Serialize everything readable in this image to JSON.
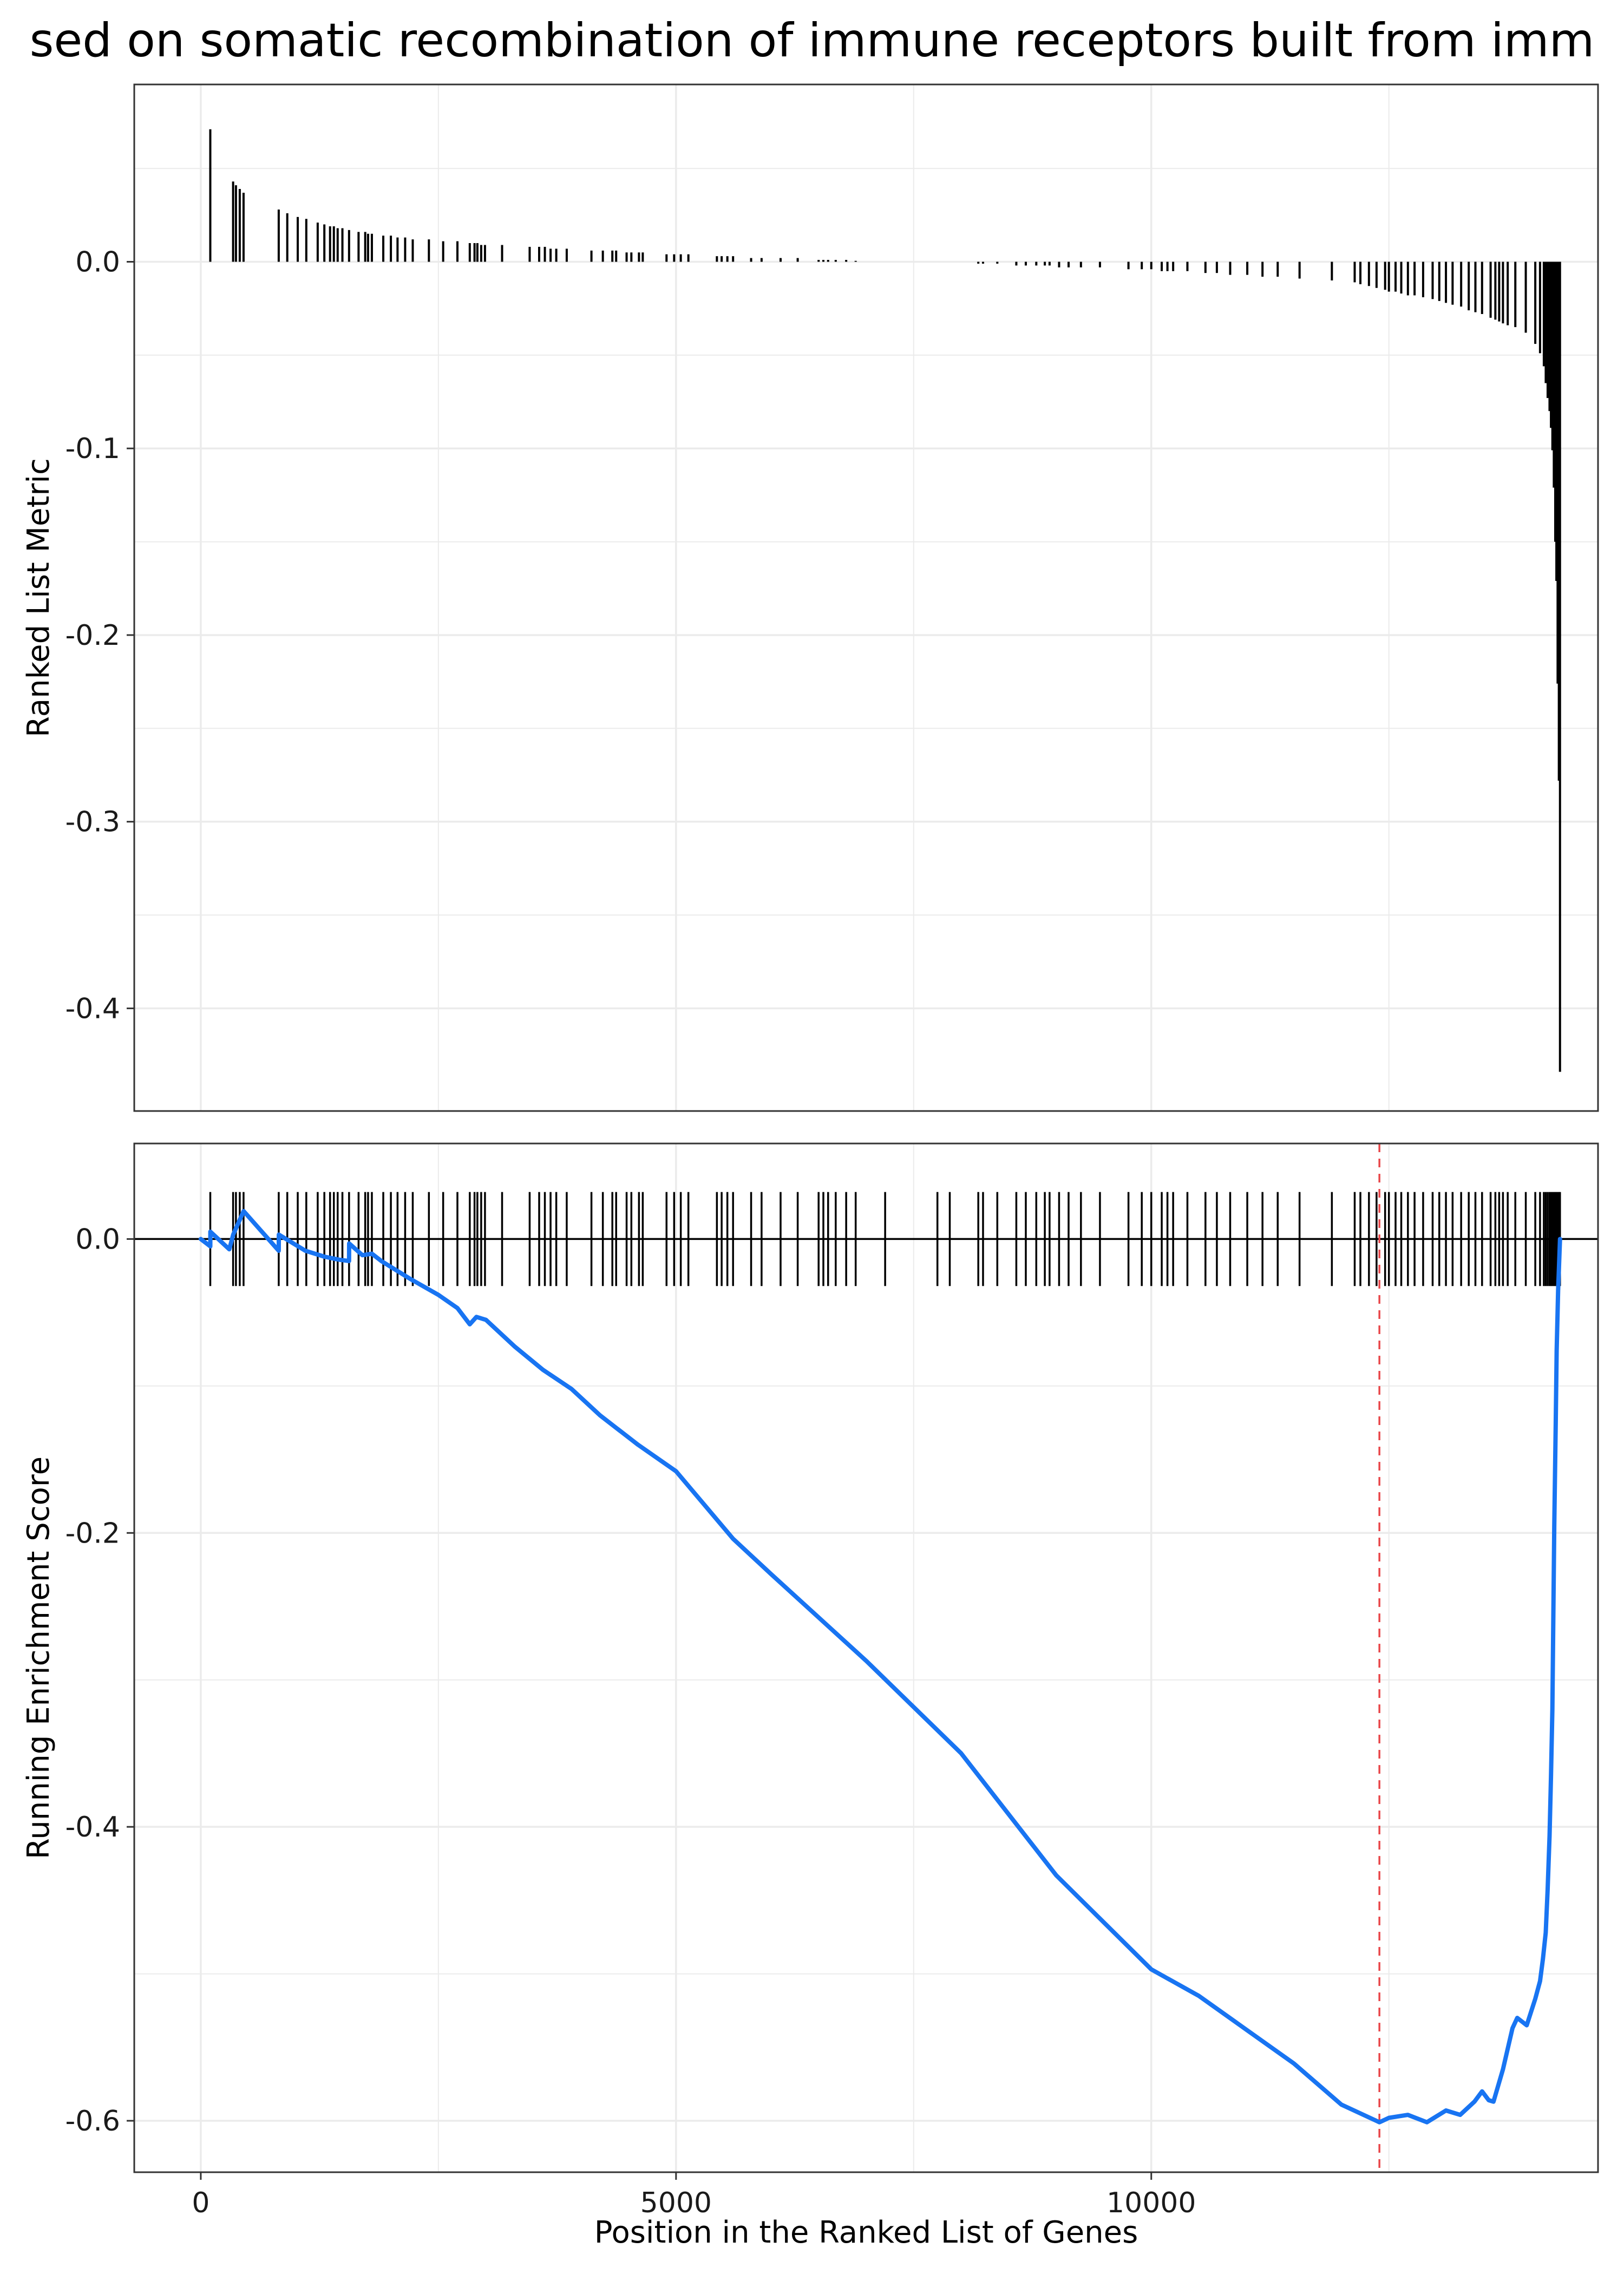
{
  "title": "sed on somatic recombination of immune receptors built from imm",
  "colors": {
    "curve": "#1874F2",
    "hits": "#000000",
    "min_line": "#E8474A",
    "grid": "#EBEBEB"
  },
  "chart_data": [
    {
      "type": "bar",
      "panel": "top",
      "ylabel": "Ranked List Metric",
      "xlim": [
        -700,
        14700
      ],
      "ylim": [
        -0.455,
        0.095
      ],
      "yticks": [
        {
          "v": 0.0,
          "label": "0.0"
        },
        {
          "v": -0.1,
          "label": "-0.1"
        },
        {
          "v": -0.2,
          "label": "-0.2"
        },
        {
          "v": -0.3,
          "label": "-0.3"
        },
        {
          "v": -0.4,
          "label": "-0.4"
        }
      ],
      "grid": true,
      "points": [
        [
          100,
          0.071
        ],
        [
          340,
          0.043
        ],
        [
          370,
          0.041
        ],
        [
          410,
          0.039
        ],
        [
          450,
          0.037
        ],
        [
          820,
          0.028
        ],
        [
          910,
          0.026
        ],
        [
          1020,
          0.024
        ],
        [
          1110,
          0.023
        ],
        [
          1230,
          0.021
        ],
        [
          1300,
          0.02
        ],
        [
          1360,
          0.019
        ],
        [
          1400,
          0.019
        ],
        [
          1440,
          0.018
        ],
        [
          1490,
          0.018
        ],
        [
          1560,
          0.017
        ],
        [
          1660,
          0.016
        ],
        [
          1730,
          0.016
        ],
        [
          1760,
          0.015
        ],
        [
          1800,
          0.015
        ],
        [
          1920,
          0.014
        ],
        [
          2000,
          0.014
        ],
        [
          2070,
          0.013
        ],
        [
          2150,
          0.013
        ],
        [
          2230,
          0.012
        ],
        [
          2400,
          0.012
        ],
        [
          2550,
          0.011
        ],
        [
          2700,
          0.011
        ],
        [
          2830,
          0.01
        ],
        [
          2880,
          0.01
        ],
        [
          2910,
          0.01
        ],
        [
          2950,
          0.009
        ],
        [
          2990,
          0.009
        ],
        [
          3170,
          0.009
        ],
        [
          3460,
          0.008
        ],
        [
          3560,
          0.008
        ],
        [
          3620,
          0.008
        ],
        [
          3680,
          0.007
        ],
        [
          3740,
          0.007
        ],
        [
          3850,
          0.007
        ],
        [
          4110,
          0.006
        ],
        [
          4230,
          0.006
        ],
        [
          4330,
          0.006
        ],
        [
          4370,
          0.006
        ],
        [
          4480,
          0.005
        ],
        [
          4530,
          0.005
        ],
        [
          4610,
          0.005
        ],
        [
          4650,
          0.005
        ],
        [
          4900,
          0.004
        ],
        [
          4980,
          0.004
        ],
        [
          5050,
          0.004
        ],
        [
          5130,
          0.004
        ],
        [
          5430,
          0.003
        ],
        [
          5480,
          0.003
        ],
        [
          5540,
          0.003
        ],
        [
          5600,
          0.003
        ],
        [
          5790,
          0.002
        ],
        [
          5900,
          0.002
        ],
        [
          6100,
          0.002
        ],
        [
          6280,
          0.002
        ],
        [
          6500,
          0.001
        ],
        [
          6550,
          0.001
        ],
        [
          6600,
          0.001
        ],
        [
          6680,
          0.001
        ],
        [
          6790,
          0.001
        ],
        [
          6890,
          0.0005
        ],
        [
          7200,
          0.0
        ],
        [
          7750,
          0.0
        ],
        [
          7880,
          0.0
        ],
        [
          8180,
          -0.001
        ],
        [
          8230,
          -0.001
        ],
        [
          8380,
          -0.001
        ],
        [
          8580,
          -0.002
        ],
        [
          8680,
          -0.002
        ],
        [
          8790,
          -0.002
        ],
        [
          8880,
          -0.002
        ],
        [
          8930,
          -0.002
        ],
        [
          9030,
          -0.003
        ],
        [
          9130,
          -0.003
        ],
        [
          9260,
          -0.003
        ],
        [
          9460,
          -0.003
        ],
        [
          9760,
          -0.004
        ],
        [
          9900,
          -0.004
        ],
        [
          10000,
          -0.004
        ],
        [
          10110,
          -0.005
        ],
        [
          10170,
          -0.005
        ],
        [
          10230,
          -0.005
        ],
        [
          10380,
          -0.005
        ],
        [
          10570,
          -0.006
        ],
        [
          10690,
          -0.006
        ],
        [
          10830,
          -0.007
        ],
        [
          11010,
          -0.007
        ],
        [
          11170,
          -0.008
        ],
        [
          11330,
          -0.008
        ],
        [
          11560,
          -0.009
        ],
        [
          11900,
          -0.01
        ],
        [
          12140,
          -0.011
        ],
        [
          12200,
          -0.012
        ],
        [
          12290,
          -0.013
        ],
        [
          12370,
          -0.014
        ],
        [
          12460,
          -0.015
        ],
        [
          12500,
          -0.016
        ],
        [
          12570,
          -0.016
        ],
        [
          12630,
          -0.017
        ],
        [
          12700,
          -0.018
        ],
        [
          12770,
          -0.018
        ],
        [
          12860,
          -0.019
        ],
        [
          12960,
          -0.02
        ],
        [
          13030,
          -0.021
        ],
        [
          13100,
          -0.022
        ],
        [
          13170,
          -0.023
        ],
        [
          13260,
          -0.024
        ],
        [
          13340,
          -0.026
        ],
        [
          13410,
          -0.027
        ],
        [
          13480,
          -0.028
        ],
        [
          13570,
          -0.03
        ],
        [
          13620,
          -0.031
        ],
        [
          13660,
          -0.032
        ],
        [
          13700,
          -0.033
        ],
        [
          13750,
          -0.034
        ],
        [
          13830,
          -0.035
        ],
        [
          13940,
          -0.038
        ],
        [
          14040,
          -0.044
        ],
        [
          14090,
          -0.049
        ],
        [
          14130,
          -0.056
        ],
        [
          14150,
          -0.065
        ],
        [
          14170,
          -0.073
        ],
        [
          14190,
          -0.08
        ],
        [
          14205,
          -0.089
        ],
        [
          14220,
          -0.101
        ],
        [
          14235,
          -0.121
        ],
        [
          14250,
          -0.15
        ],
        [
          14262,
          -0.171
        ],
        [
          14275,
          -0.226
        ],
        [
          14288,
          -0.278
        ],
        [
          14300,
          -0.434
        ]
      ]
    },
    {
      "type": "line",
      "panel": "bottom",
      "xlabel": "Position in the Ranked List of Genes",
      "ylabel": "Running Enrichment Score",
      "xlim": [
        -700,
        14700
      ],
      "ylim": [
        -0.635,
        0.065
      ],
      "xticks": [
        {
          "v": 0,
          "label": "0"
        },
        {
          "v": 5000,
          "label": "5000"
        },
        {
          "v": 10000,
          "label": "10000"
        }
      ],
      "yticks": [
        {
          "v": 0.0,
          "label": "0.0"
        },
        {
          "v": -0.2,
          "label": "-0.2"
        },
        {
          "v": -0.4,
          "label": "-0.4"
        },
        {
          "v": -0.6,
          "label": "-0.6"
        }
      ],
      "grid": true,
      "min_position": 12400,
      "hit_positions": [
        100,
        340,
        370,
        410,
        450,
        820,
        910,
        1020,
        1110,
        1230,
        1300,
        1360,
        1400,
        1440,
        1490,
        1560,
        1660,
        1730,
        1760,
        1800,
        1920,
        2000,
        2070,
        2150,
        2230,
        2400,
        2550,
        2700,
        2830,
        2880,
        2910,
        2950,
        2990,
        3170,
        3460,
        3560,
        3620,
        3680,
        3740,
        3850,
        4110,
        4230,
        4330,
        4370,
        4480,
        4530,
        4610,
        4650,
        4900,
        4980,
        5050,
        5130,
        5430,
        5480,
        5540,
        5600,
        5790,
        5900,
        6100,
        6280,
        6500,
        6550,
        6600,
        6680,
        6790,
        6890,
        7200,
        7750,
        7880,
        8180,
        8230,
        8380,
        8580,
        8680,
        8790,
        8880,
        8930,
        9030,
        9130,
        9260,
        9460,
        9760,
        9900,
        10000,
        10110,
        10170,
        10230,
        10380,
        10570,
        10690,
        10830,
        11010,
        11170,
        11330,
        11560,
        11900,
        12140,
        12200,
        12290,
        12370,
        12460,
        12500,
        12570,
        12630,
        12700,
        12770,
        12860,
        12960,
        13030,
        13100,
        13170,
        13260,
        13340,
        13410,
        13480,
        13570,
        13620,
        13660,
        13700,
        13750,
        13830,
        13940,
        14040,
        14090,
        14130,
        14150,
        14170,
        14190,
        14205,
        14220,
        14235,
        14250,
        14262,
        14275,
        14288,
        14300
      ],
      "series": [
        {
          "x": [
            0,
            100,
            101,
            300,
            341,
            451,
            820,
            821,
            1100,
            1300,
            1450,
            1560,
            1561,
            1700,
            1800,
            1900,
            2200,
            2500,
            2700,
            2830,
            2900,
            3000,
            3300,
            3600,
            3900,
            4200,
            4600,
            5000,
            5300,
            5600,
            6000,
            7000,
            8000,
            9000,
            10000,
            10500,
            11000,
            11500,
            12000,
            12400,
            12500,
            12700,
            12900,
            13100,
            13250,
            13400,
            13480,
            13550,
            13600,
            13700,
            13800,
            13850,
            13950,
            14040,
            14090,
            14120,
            14150,
            14170,
            14190,
            14205,
            14220,
            14240,
            14255,
            14265,
            14280,
            14300
          ],
          "y": [
            0.0,
            -0.005,
            0.005,
            -0.007,
            0.003,
            0.019,
            -0.008,
            0.003,
            -0.008,
            -0.012,
            -0.014,
            -0.015,
            -0.003,
            -0.011,
            -0.01,
            -0.015,
            -0.027,
            -0.038,
            -0.047,
            -0.058,
            -0.053,
            -0.055,
            -0.073,
            -0.089,
            -0.102,
            -0.12,
            -0.14,
            -0.158,
            -0.181,
            -0.204,
            -0.228,
            -0.287,
            -0.35,
            -0.433,
            -0.497,
            -0.515,
            -0.538,
            -0.561,
            -0.589,
            -0.601,
            -0.598,
            -0.596,
            -0.601,
            -0.593,
            -0.596,
            -0.587,
            -0.58,
            -0.586,
            -0.587,
            -0.565,
            -0.537,
            -0.53,
            -0.535,
            -0.517,
            -0.505,
            -0.49,
            -0.472,
            -0.443,
            -0.406,
            -0.366,
            -0.32,
            -0.195,
            -0.125,
            -0.076,
            -0.035,
            0.0
          ]
        }
      ]
    }
  ]
}
